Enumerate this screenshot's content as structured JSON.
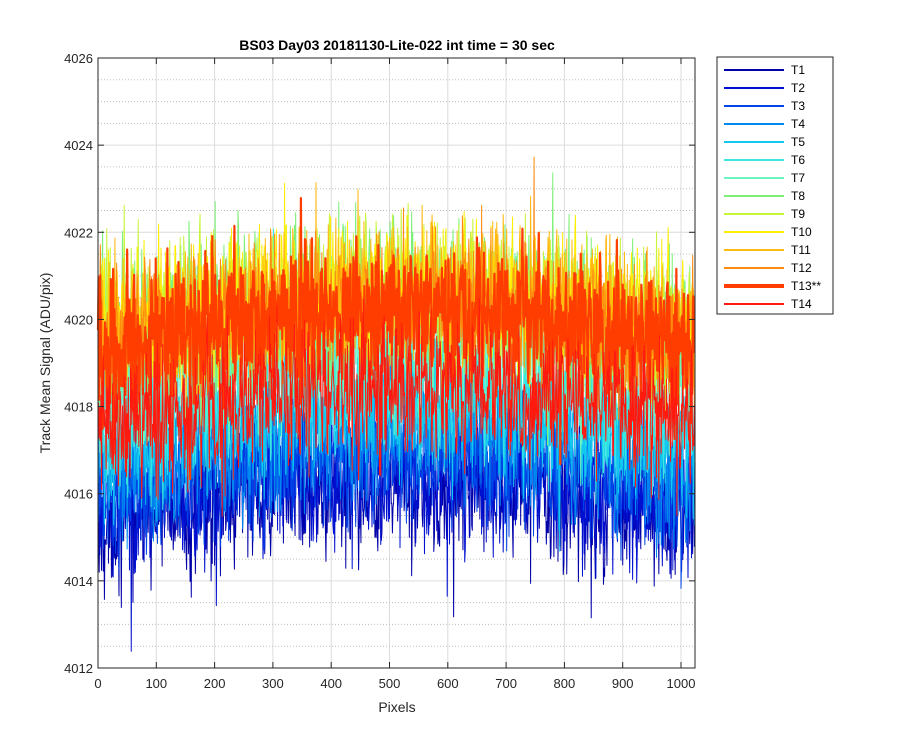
{
  "chart_data": {
    "type": "line",
    "title": "BS03 Day03 20181130-Lite-022 int time = 30 sec",
    "xlabel": "Pixels",
    "ylabel": "Track Mean Signal (ADU/pix)",
    "xlim": [
      0,
      1024
    ],
    "ylim": [
      4012,
      4026
    ],
    "x_ticks": [
      0,
      100,
      200,
      300,
      400,
      500,
      600,
      700,
      800,
      900,
      1000
    ],
    "y_ticks": [
      4012,
      4014,
      4016,
      4018,
      4020,
      4022,
      4024,
      4026
    ],
    "x_tick_labels": [
      "0",
      "100",
      "200",
      "300",
      "400",
      "500",
      "600",
      "700",
      "800",
      "900",
      "1000"
    ],
    "y_tick_labels": [
      "4012",
      "4014",
      "4016",
      "4018",
      "4020",
      "4022",
      "4024",
      "4026"
    ],
    "grid": true,
    "minor_grid": "y",
    "legend_position": "outside-right",
    "n_points": 1024,
    "series": [
      {
        "name": "T1",
        "color": "#0000a8",
        "mean": 4015.8,
        "noise": 1.0,
        "bold": false
      },
      {
        "name": "T2",
        "color": "#0010d0",
        "mean": 4016.1,
        "noise": 1.0,
        "bold": false
      },
      {
        "name": "T3",
        "color": "#0045e8",
        "mean": 4016.5,
        "noise": 1.0,
        "bold": false
      },
      {
        "name": "T4",
        "color": "#0088f0",
        "mean": 4017.0,
        "noise": 1.0,
        "bold": false
      },
      {
        "name": "T5",
        "color": "#12c8ee",
        "mean": 4017.6,
        "noise": 1.0,
        "bold": false
      },
      {
        "name": "T6",
        "color": "#3ae8e0",
        "mean": 4018.3,
        "noise": 1.1,
        "bold": false
      },
      {
        "name": "T7",
        "color": "#6cf5c0",
        "mean": 4019.2,
        "noise": 1.1,
        "bold": false
      },
      {
        "name": "T8",
        "color": "#7ef078",
        "mean": 4020.0,
        "noise": 1.1,
        "bold": false
      },
      {
        "name": "T9",
        "color": "#c8f53a",
        "mean": 4020.3,
        "noise": 1.0,
        "bold": false
      },
      {
        "name": "T10",
        "color": "#ffee00",
        "mean": 4020.2,
        "noise": 1.0,
        "bold": false
      },
      {
        "name": "T11",
        "color": "#ffba10",
        "mean": 4020.1,
        "noise": 1.0,
        "bold": false
      },
      {
        "name": "T12",
        "color": "#ff8a10",
        "mean": 4019.9,
        "noise": 1.0,
        "bold": false
      },
      {
        "name": "T13**",
        "color": "#ff3d00",
        "mean": 4019.7,
        "noise": 1.0,
        "bold": true
      },
      {
        "name": "T14",
        "color": "#ff1a10",
        "mean": 4018.0,
        "noise": 1.0,
        "bold": false
      }
    ]
  }
}
